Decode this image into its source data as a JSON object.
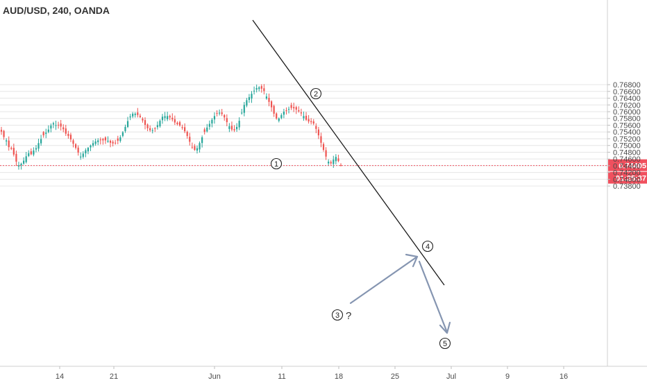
{
  "chart_data": {
    "type": "candlestick",
    "symbol_title": "AUD/USD, 240, OANDA",
    "y_ticks": [
      "0.76800",
      "0.76600",
      "0.76400",
      "0.76200",
      "0.76000",
      "0.75800",
      "0.75600",
      "0.75400",
      "0.75200",
      "0.75000",
      "0.74800",
      "0.74600",
      "0.74400",
      "0.74200",
      "0.74000",
      "0.73800"
    ],
    "ylim": [
      0.7372,
      0.7693
    ],
    "x_ticks": [
      "14",
      "21",
      "Jun",
      "11",
      "18",
      "25",
      "Jul",
      "9",
      "16"
    ],
    "current_price": {
      "value": 0.74405,
      "label": "0.74405",
      "countdown": "01:25:37",
      "color": "#f0505e"
    },
    "colors": {
      "up": "#26a69a",
      "down": "#ef5350",
      "line": "#1a1a1a",
      "arrow": "#8595b1",
      "grid": "#e6e6e6",
      "axis_text": "#4a4a4a"
    },
    "wave_labels": [
      "1",
      "2",
      "3",
      "4",
      "5"
    ],
    "question_mark": "?",
    "close_series": [
      0.7541,
      0.7525,
      0.7515,
      0.7495,
      0.749,
      0.7473,
      0.7452,
      0.7441,
      0.7446,
      0.7455,
      0.7468,
      0.7477,
      0.7474,
      0.7485,
      0.7492,
      0.7507,
      0.7519,
      0.753,
      0.7538,
      0.7547,
      0.7559,
      0.7566,
      0.756,
      0.7561,
      0.7556,
      0.7548,
      0.7535,
      0.7528,
      0.7518,
      0.7505,
      0.7493,
      0.7479,
      0.7467,
      0.7476,
      0.7486,
      0.7493,
      0.75,
      0.7507,
      0.7512,
      0.7515,
      0.7516,
      0.7515,
      0.7515,
      0.7514,
      0.7508,
      0.7506,
      0.7507,
      0.7514,
      0.7524,
      0.7539,
      0.7555,
      0.7572,
      0.7586,
      0.7594,
      0.7594,
      0.759,
      0.7584,
      0.7574,
      0.7561,
      0.7551,
      0.7545,
      0.7545,
      0.755,
      0.756,
      0.7573,
      0.7585,
      0.7587,
      0.7587,
      0.7583,
      0.7577,
      0.7568,
      0.7563,
      0.7559,
      0.7552,
      0.7542,
      0.7528,
      0.7511,
      0.7494,
      0.7487,
      0.7492,
      0.7507,
      0.7524,
      0.754,
      0.7553,
      0.7564,
      0.7576,
      0.7587,
      0.7595,
      0.7597,
      0.7593,
      0.7583,
      0.7569,
      0.7557,
      0.7547,
      0.7545,
      0.7555,
      0.7573,
      0.7597,
      0.762,
      0.7634,
      0.7643,
      0.7653,
      0.7662,
      0.767,
      0.7672,
      0.7668,
      0.7661,
      0.7645,
      0.7629,
      0.7613,
      0.7594,
      0.758,
      0.758,
      0.759,
      0.76,
      0.7604,
      0.7608,
      0.7611,
      0.761,
      0.7606,
      0.7601,
      0.7595,
      0.7587,
      0.7576,
      0.7571,
      0.7569,
      0.7565,
      0.7549,
      0.753,
      0.7508,
      0.7487,
      0.7467,
      0.7452,
      0.7447,
      0.7458,
      0.7466,
      0.7454,
      0.7442
    ]
  }
}
